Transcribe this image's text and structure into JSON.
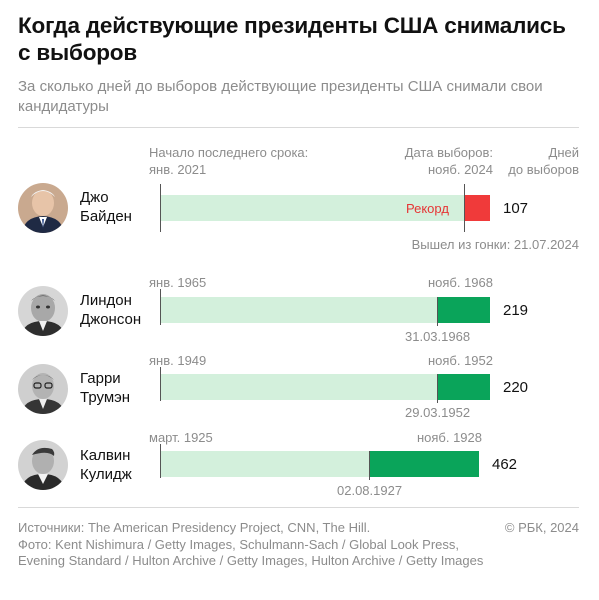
{
  "title": "Когда действующие президенты США снимались с выборов",
  "subtitle": "За сколько дней до выборов действующие президенты США снимали свои кандидатуры",
  "header": {
    "start_label": "Начало последнего срока:",
    "end_label": "Дата выборов:",
    "days_label_1": "Дней",
    "days_label_2": "до выборов"
  },
  "chart_data": {
    "type": "bar",
    "title": "Когда действующие президенты США снимались с выборов",
    "unit": "Дней до выборов",
    "rows": [
      {
        "name_1": "Джо",
        "name_2": "Байден",
        "term_start": "янв. 2021",
        "election": "нояб. 2024",
        "withdrawal_label": "Вышел из гонки: 21.07.2024",
        "days": 107,
        "note": "Рекорд",
        "term_days": 1385,
        "bar_color": "#f03a3a",
        "avatar": "biden-portrait"
      },
      {
        "name_1": "Линдон",
        "name_2": "Джонсон",
        "term_start": "янв. 1965",
        "election": "нояб. 1968",
        "withdrawal_label": "31.03.1968",
        "days": 219,
        "note": "",
        "term_days": 1400,
        "bar_color": "#0aa45a",
        "avatar": "johnson-portrait"
      },
      {
        "name_1": "Гарри",
        "name_2": "Трумэн",
        "term_start": "янв. 1949",
        "election": "нояб. 1952",
        "withdrawal_label": "29.03.1952",
        "days": 220,
        "note": "",
        "term_days": 1400,
        "bar_color": "#0aa45a",
        "avatar": "truman-portrait"
      },
      {
        "name_1": "Калвин",
        "name_2": "Кулидж",
        "term_start": "март. 1925",
        "election": "нояб. 1928",
        "withdrawal_label": "02.08.1927",
        "days": 462,
        "note": "",
        "term_days": 1340,
        "bar_color": "#0aa45a",
        "avatar": "coolidge-portrait"
      }
    ]
  },
  "footer": {
    "sources": "Источники: The American Presidency Project, CNN, The Hill.",
    "photo": "Фото: Kent Nishimura / Getty Images, Schulmann-Sach / Global Look Press, Evening Standard / Hulton Archive / Getty Images, Hulton Archive / Getty Images",
    "copyright": "© РБК, 2024"
  }
}
